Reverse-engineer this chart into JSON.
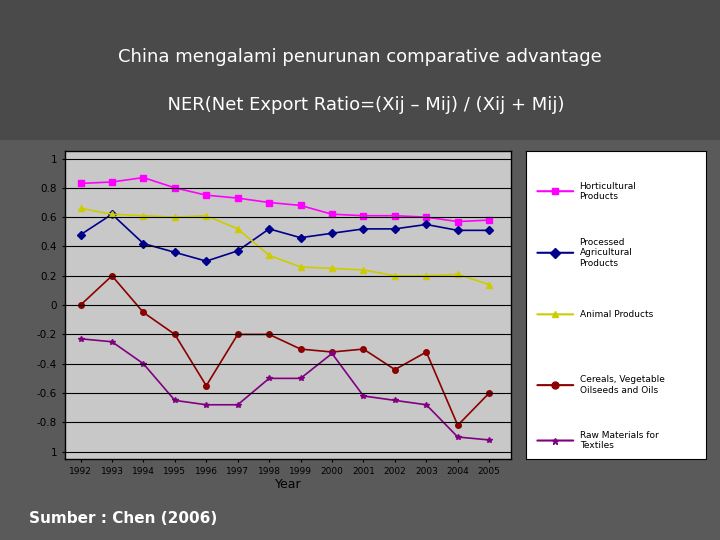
{
  "title_line1": "China mengalami penurunan comparative advantage",
  "title_line2": "  NER(Net Export Ratio=(Xij – Mij) / (Xij + Mij)",
  "source": "Sumber : Chen (2006)",
  "xlabel": "Year",
  "years": [
    1992,
    1993,
    1994,
    1995,
    1996,
    1997,
    1998,
    1999,
    2000,
    2001,
    2002,
    2003,
    2004,
    2005
  ],
  "series": {
    "Horticultural\nProducts": {
      "color": "#FF00FF",
      "marker": "s",
      "data": [
        0.83,
        0.84,
        0.87,
        0.8,
        0.75,
        0.73,
        0.7,
        0.68,
        0.62,
        0.61,
        0.61,
        0.6,
        0.57,
        0.58
      ]
    },
    "Processed\nAgricultural\nProducts": {
      "color": "#00008B",
      "marker": "D",
      "data": [
        0.48,
        0.62,
        0.42,
        0.36,
        0.3,
        0.37,
        0.52,
        0.46,
        0.49,
        0.52,
        0.52,
        0.55,
        0.51,
        0.51
      ]
    },
    "Animal Products": {
      "color": "#CCCC00",
      "marker": "^",
      "data": [
        0.66,
        0.62,
        0.61,
        0.6,
        0.61,
        0.52,
        0.34,
        0.26,
        0.25,
        0.24,
        0.2,
        0.2,
        0.21,
        0.14
      ]
    },
    "Cereals, Vegetable\nOilseeds and Oils": {
      "color": "#8B0000",
      "marker": "o",
      "data": [
        0.0,
        0.2,
        -0.05,
        -0.2,
        -0.55,
        -0.2,
        -0.2,
        -0.3,
        -0.32,
        -0.3,
        -0.44,
        -0.32,
        -0.82,
        -0.6
      ]
    },
    "Raw Materials for\nTextiles": {
      "color": "#800080",
      "marker": "*",
      "data": [
        -0.23,
        -0.25,
        -0.4,
        -0.65,
        -0.68,
        -0.68,
        -0.5,
        -0.5,
        -0.33,
        -0.62,
        -0.65,
        -0.68,
        -0.9,
        -0.92
      ]
    }
  },
  "ylim": [
    -1.05,
    1.05
  ],
  "yticks": [
    1.0,
    0.8,
    0.6,
    0.4,
    0.2,
    0.0,
    -0.2,
    -0.4,
    -0.6,
    -0.8,
    -1.0
  ],
  "plot_bg": "#C8C8C8",
  "slide_bg": "#5A5A5A",
  "title_bg": "#4A4A4A",
  "title_color": "#FFFFFF",
  "source_color": "#FFFFFF"
}
